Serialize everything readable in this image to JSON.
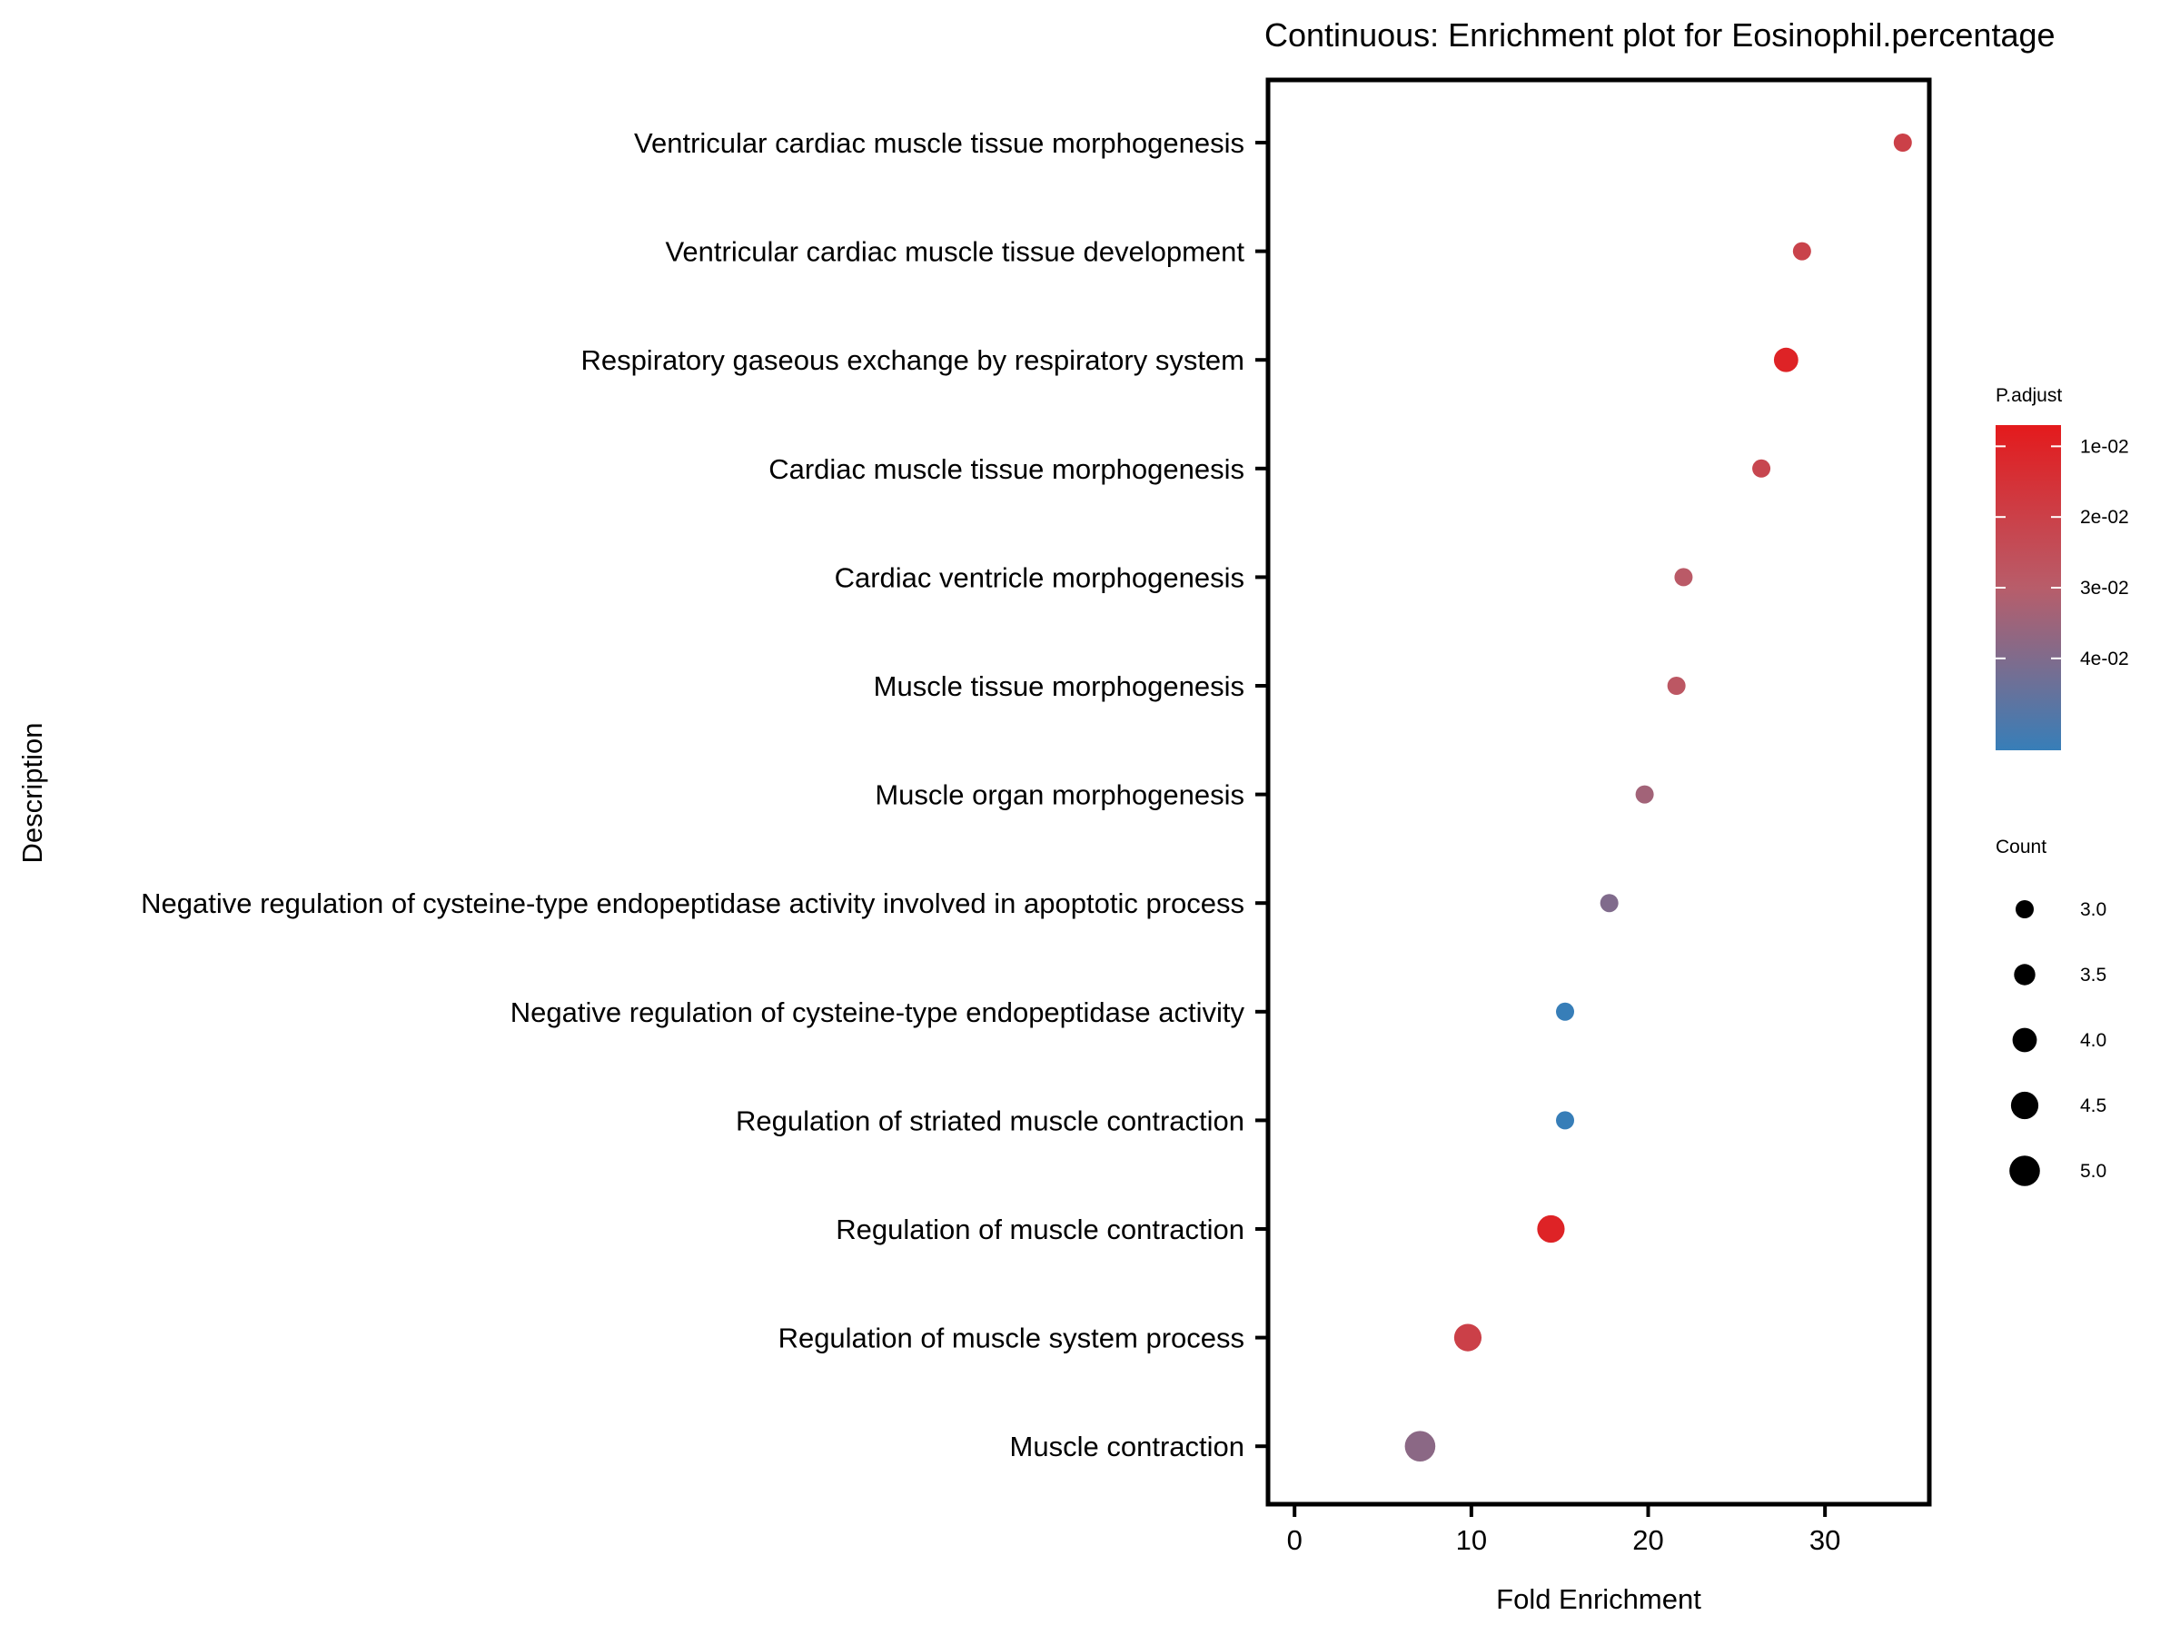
{
  "chart_data": {
    "type": "scatter",
    "title": "Continuous: Enrichment plot for Eosinophil.percentage",
    "xlabel": "Fold Enrichment",
    "ylabel": "Description",
    "xlim": [
      -1.5,
      35.9
    ],
    "xticks": [
      0,
      10,
      20,
      30
    ],
    "xtick_labels": [
      "0",
      "10",
      "20",
      "30"
    ],
    "categories": [
      "Ventricular cardiac muscle tissue morphogenesis",
      "Ventricular cardiac muscle tissue development",
      "Respiratory gaseous exchange by respiratory system",
      "Cardiac muscle tissue morphogenesis",
      "Cardiac ventricle morphogenesis",
      "Muscle tissue morphogenesis",
      "Muscle organ morphogenesis",
      "Negative regulation of cysteine-type endopeptidase activity involved in apoptotic process",
      "Negative regulation of cysteine-type endopeptidase activity",
      "Regulation of striated muscle contraction",
      "Regulation of muscle contraction",
      "Regulation of muscle system process",
      "Muscle contraction"
    ],
    "points": [
      {
        "description": "Ventricular cardiac muscle tissue morphogenesis",
        "fold_enrichment": 34.4,
        "count": 3,
        "p_adjust": 0.02
      },
      {
        "description": "Ventricular cardiac muscle tissue development",
        "fold_enrichment": 28.7,
        "count": 3,
        "p_adjust": 0.021
      },
      {
        "description": "Respiratory gaseous exchange by respiratory system",
        "fold_enrichment": 27.8,
        "count": 4,
        "p_adjust": 0.01
      },
      {
        "description": "Cardiac muscle tissue morphogenesis",
        "fold_enrichment": 26.4,
        "count": 3,
        "p_adjust": 0.022
      },
      {
        "description": "Cardiac ventricle morphogenesis",
        "fold_enrichment": 22.0,
        "count": 3,
        "p_adjust": 0.029
      },
      {
        "description": "Muscle tissue morphogenesis",
        "fold_enrichment": 21.6,
        "count": 3,
        "p_adjust": 0.028
      },
      {
        "description": "Muscle organ morphogenesis",
        "fold_enrichment": 19.8,
        "count": 3,
        "p_adjust": 0.034
      },
      {
        "description": "Negative regulation of cysteine-type endopeptidase activity involved in apoptotic process",
        "fold_enrichment": 17.8,
        "count": 3,
        "p_adjust": 0.04
      },
      {
        "description": "Negative regulation of cysteine-type endopeptidase activity",
        "fold_enrichment": 15.3,
        "count": 3,
        "p_adjust": 0.053
      },
      {
        "description": "Regulation of striated muscle contraction",
        "fold_enrichment": 15.3,
        "count": 3,
        "p_adjust": 0.053
      },
      {
        "description": "Regulation of muscle contraction",
        "fold_enrichment": 14.5,
        "count": 4.5,
        "p_adjust": 0.01
      },
      {
        "description": "Regulation of muscle system process",
        "fold_enrichment": 9.8,
        "count": 4.5,
        "p_adjust": 0.02
      },
      {
        "description": "Muscle contraction",
        "fold_enrichment": 7.1,
        "count": 5,
        "p_adjust": 0.038
      }
    ],
    "color_legend": {
      "title": "P.adjust",
      "range": [
        0.007,
        0.053
      ],
      "low_color": "#e41a1c",
      "mid_color": "#b85d6a",
      "high_color": "#377eb8",
      "ticks": [
        0.01,
        0.02,
        0.03,
        0.04
      ],
      "tick_labels": [
        "1e-02",
        "2e-02",
        "3e-02",
        "4e-02"
      ]
    },
    "size_legend": {
      "title": "Count",
      "values": [
        3.0,
        3.5,
        4.0,
        4.5,
        5.0
      ],
      "labels": [
        "3.0",
        "3.5",
        "4.0",
        "4.5",
        "5.0"
      ]
    }
  }
}
